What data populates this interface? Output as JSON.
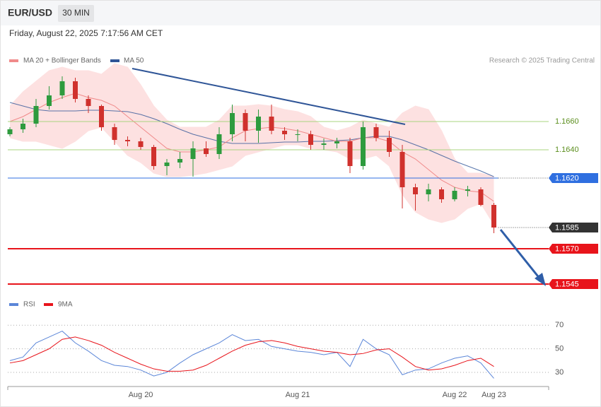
{
  "header": {
    "symbol": "EUR/USD",
    "timeframe": "30 MIN",
    "timestamp": "Friday, August 22, 2025 7:17:56 AM CET",
    "credit": "Research © 2025 Trading Central"
  },
  "chart_data": [
    {
      "type": "candlestick",
      "up_color": "#2e9b3e",
      "down_color": "#d0312d",
      "ylim": [
        1.154,
        1.1702
      ],
      "open": [
        1.1651,
        1.16545,
        1.16585,
        1.1671,
        1.16785,
        1.16885,
        1.1676,
        1.1671,
        1.1656,
        1.1647,
        1.1646,
        1.1642,
        1.16285,
        1.1631,
        1.16335,
        1.1641,
        1.1637,
        1.1651,
        1.1666,
        1.16535,
        1.16635,
        1.16535,
        1.1651,
        1.1651,
        1.16435,
        1.16445,
        1.1646,
        1.16285,
        1.1656,
        1.16485,
        1.16385,
        1.16135,
        1.16085,
        1.1612,
        1.1605,
        1.1611,
        1.1612,
        1.1601
      ],
      "high": [
        1.1656,
        1.1662,
        1.1676,
        1.1685,
        1.1692,
        1.1691,
        1.16785,
        1.1672,
        1.16585,
        1.16495,
        1.16485,
        1.16435,
        1.16335,
        1.16385,
        1.1646,
        1.1646,
        1.1656,
        1.1672,
        1.16685,
        1.16685,
        1.1672,
        1.1656,
        1.16545,
        1.16535,
        1.1648,
        1.16485,
        1.16485,
        1.166,
        1.16585,
        1.16535,
        1.16435,
        1.1616,
        1.1616,
        1.16135,
        1.16135,
        1.16145,
        1.16135,
        1.16025
      ],
      "low": [
        1.16495,
        1.1652,
        1.1656,
        1.16685,
        1.1676,
        1.16735,
        1.1666,
        1.16535,
        1.16435,
        1.16425,
        1.164,
        1.1626,
        1.1622,
        1.1627,
        1.1621,
        1.1635,
        1.16335,
        1.1646,
        1.1646,
        1.1645,
        1.1651,
        1.1647,
        1.1646,
        1.164,
        1.164,
        1.1641,
        1.16235,
        1.1626,
        1.1646,
        1.1635,
        1.15985,
        1.1597,
        1.16035,
        1.16025,
        1.16035,
        1.1607,
        1.16,
        1.1581
      ],
      "close": [
        1.16545,
        1.16585,
        1.1671,
        1.16785,
        1.16885,
        1.1676,
        1.1671,
        1.1656,
        1.1647,
        1.1646,
        1.1642,
        1.16285,
        1.1631,
        1.16335,
        1.1641,
        1.1637,
        1.1651,
        1.1666,
        1.16535,
        1.16635,
        1.16535,
        1.1651,
        1.1651,
        1.16435,
        1.16445,
        1.1646,
        1.16285,
        1.1656,
        1.16485,
        1.16385,
        1.16135,
        1.16085,
        1.1612,
        1.1605,
        1.1611,
        1.1612,
        1.1601,
        1.1585
      ],
      "bands": {
        "name": "MA 20 + Bollinger Bands",
        "color": "#f08a8a",
        "fill": "#fde1e1",
        "middle": [
          1.166,
          1.16635,
          1.16685,
          1.16735,
          1.1677,
          1.168,
          1.1677,
          1.1675,
          1.1671,
          1.16635,
          1.1656,
          1.16485,
          1.1641,
          1.16385,
          1.16385,
          1.164,
          1.1642,
          1.16485,
          1.16535,
          1.1655,
          1.1656,
          1.1655,
          1.16535,
          1.1651,
          1.16485,
          1.1646,
          1.1646,
          1.16485,
          1.16485,
          1.1646,
          1.16385,
          1.16335,
          1.1626,
          1.16185,
          1.16135,
          1.1611,
          1.161,
          1.16035
        ],
        "upper": [
          1.1671,
          1.1681,
          1.16885,
          1.1696,
          1.16985,
          1.1696,
          1.1696,
          1.16935,
          1.1701,
          1.16985,
          1.1686,
          1.1671,
          1.1661,
          1.1656,
          1.1656,
          1.1656,
          1.1661,
          1.1671,
          1.1671,
          1.1672,
          1.1671,
          1.16685,
          1.1667,
          1.16635,
          1.1656,
          1.16535,
          1.1656,
          1.1661,
          1.16585,
          1.1656,
          1.1666,
          1.1671,
          1.16685,
          1.16535,
          1.16335,
          1.16235,
          1.16235,
          1.1621
        ],
        "lower": [
          1.16485,
          1.1646,
          1.1646,
          1.16435,
          1.1641,
          1.1646,
          1.16535,
          1.1656,
          1.1646,
          1.1636,
          1.1631,
          1.16235,
          1.1621,
          1.1621,
          1.1622,
          1.16235,
          1.1626,
          1.16285,
          1.1636,
          1.16385,
          1.1641,
          1.16435,
          1.16435,
          1.1641,
          1.164,
          1.16385,
          1.16335,
          1.16335,
          1.1636,
          1.16285,
          1.16085,
          1.1596,
          1.1591,
          1.15885,
          1.1591,
          1.15985,
          1.1602,
          1.1587
        ]
      },
      "series": [
        {
          "name": "MA 50",
          "color": "#2f5597",
          "values": [
            1.16735,
            1.1671,
            1.16685,
            1.16675,
            1.16675,
            1.16675,
            1.1668,
            1.1668,
            1.16675,
            1.1667,
            1.1665,
            1.1662,
            1.16585,
            1.16545,
            1.1651,
            1.16485,
            1.1646,
            1.16445,
            1.16445,
            1.16445,
            1.1645,
            1.16455,
            1.16455,
            1.1646,
            1.1646,
            1.16465,
            1.1647,
            1.16485,
            1.16495,
            1.16495,
            1.1647,
            1.16435,
            1.164,
            1.1636,
            1.1632,
            1.16285,
            1.1625,
            1.1621
          ]
        }
      ],
      "levels": [
        {
          "value": 1.166,
          "label": "1.1660",
          "color": "#a9d47f",
          "tag": false,
          "style": "solid"
        },
        {
          "value": 1.164,
          "label": "1.1640",
          "color": "#a9d47f",
          "tag": false,
          "style": "solid"
        },
        {
          "value": 1.162,
          "label": "1.1620",
          "color": "#2f6fe0",
          "tag": true,
          "style": "solid"
        },
        {
          "value": 1.1585,
          "label": "1.1585",
          "color": "#333333",
          "tag": true,
          "style": "dotted"
        },
        {
          "value": 1.157,
          "label": "1.1570",
          "color": "#e8141b",
          "tag": true,
          "style": "solid"
        },
        {
          "value": 1.1545,
          "label": "1.1545",
          "color": "#e8141b",
          "tag": true,
          "style": "solid"
        }
      ]
    },
    {
      "type": "line",
      "categories": [
        null,
        null,
        null,
        null,
        null,
        null,
        null,
        null,
        null,
        null,
        "Aug 20",
        null,
        null,
        null,
        null,
        null,
        null,
        null,
        null,
        null,
        null,
        null,
        "Aug 21",
        null,
        null,
        null,
        null,
        null,
        null,
        null,
        null,
        null,
        null,
        null,
        "Aug 22",
        null,
        null,
        "Aug 23"
      ],
      "ylim": [
        20,
        76
      ],
      "yticks": [
        70,
        50,
        30
      ],
      "grid": true,
      "series": [
        {
          "name": "RSI",
          "color": "#5b86d8",
          "values": [
            40,
            43,
            55,
            60,
            65,
            55,
            48,
            40,
            36,
            35,
            32,
            27,
            30,
            38,
            45,
            50,
            55,
            62,
            57,
            58,
            52,
            50,
            48,
            47,
            45,
            47,
            35,
            58,
            50,
            45,
            28,
            32,
            33,
            38,
            42,
            44,
            38,
            25
          ]
        },
        {
          "name": "9MA",
          "color": "#e8141b",
          "values": [
            38,
            40,
            45,
            50,
            58,
            60,
            57,
            53,
            47,
            42,
            37,
            33,
            31,
            31,
            32,
            36,
            42,
            48,
            53,
            56,
            57,
            55,
            52,
            50,
            48,
            47,
            45,
            46,
            49,
            50,
            43,
            35,
            32,
            33,
            36,
            40,
            42,
            35
          ]
        }
      ]
    }
  ]
}
